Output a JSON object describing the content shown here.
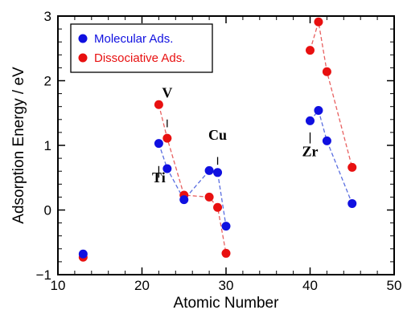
{
  "chart_data": {
    "type": "scatter",
    "xlabel": "Atomic Number",
    "ylabel": "Adsorption Energy / eV",
    "xlim": [
      10,
      50
    ],
    "ylim": [
      -1,
      3
    ],
    "xticks": [
      10,
      20,
      30,
      40,
      50
    ],
    "yticks": [
      -1,
      0,
      1,
      2,
      3
    ],
    "grid": false,
    "legend_position": "top-left",
    "series": [
      {
        "name": "Molecular Ads.",
        "color": "#1010e0",
        "line_color": "#5a6ee0",
        "x": [
          13,
          22,
          23,
          25,
          28,
          29,
          30,
          40,
          41,
          42,
          45
        ],
        "y": [
          -0.68,
          1.03,
          0.64,
          0.16,
          0.61,
          0.58,
          -0.25,
          1.38,
          1.54,
          1.07,
          0.1
        ],
        "connected_groups": [
          [
            22,
            23,
            25,
            28,
            29,
            30
          ],
          [
            40,
            41,
            42,
            45
          ]
        ]
      },
      {
        "name": "Dissociative Ads.",
        "color": "#e81010",
        "line_color": "#e86060",
        "x": [
          13,
          22,
          23,
          25,
          28,
          29,
          30,
          40,
          41,
          42,
          45
        ],
        "y": [
          -0.73,
          1.63,
          1.11,
          0.23,
          0.2,
          0.04,
          -0.67,
          2.47,
          2.91,
          2.14,
          0.66
        ],
        "connected_groups": [
          [
            22,
            23,
            25,
            28,
            29,
            30
          ],
          [
            40,
            41,
            42,
            45
          ]
        ]
      }
    ],
    "annotations": [
      {
        "text": "Ti",
        "x": 22,
        "y": 0.43
      },
      {
        "text": "V",
        "x": 23,
        "y": 1.74
      },
      {
        "text": "Cu",
        "x": 29,
        "y": 1.09
      },
      {
        "text": "Zr",
        "x": 40,
        "y": 0.83
      }
    ]
  }
}
